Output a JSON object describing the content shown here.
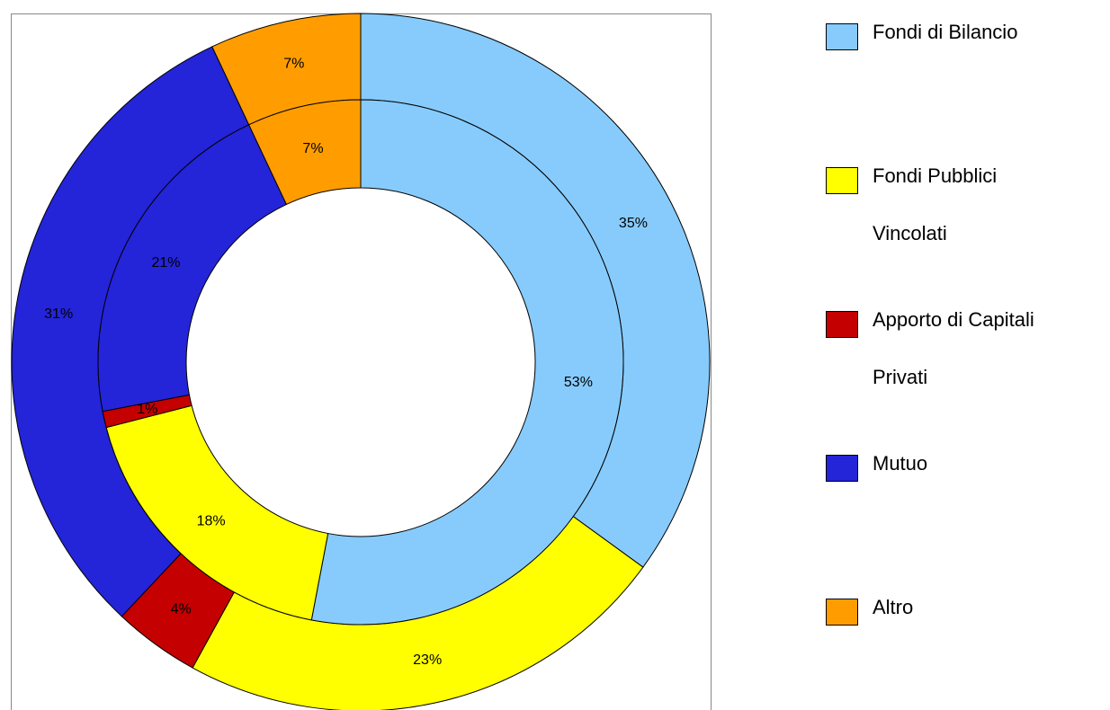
{
  "chart_data": {
    "type": "donut",
    "categories": [
      "Fondi di Bilancio",
      "Fondi Pubblici Vincolati",
      "Apporto di Capitali Privati",
      "Mutuo",
      "Altro"
    ],
    "colors": [
      "#87cbfc",
      "#ffff00",
      "#c40000",
      "#2424d8",
      "#ff9d00"
    ],
    "series": [
      {
        "values": [
          35,
          23,
          4,
          31,
          7
        ],
        "value_labels": [
          "35%",
          "23%",
          "4%",
          "31%",
          "7%"
        ]
      },
      {
        "values": [
          53,
          18,
          1,
          21,
          7
        ],
        "value_labels": [
          "53%",
          "18%",
          "1%",
          "21%",
          "7%"
        ]
      }
    ]
  }
}
